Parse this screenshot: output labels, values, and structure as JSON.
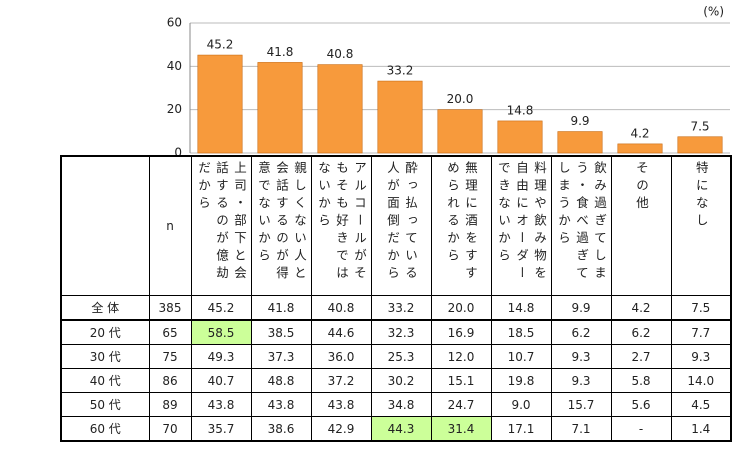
{
  "chart_data": {
    "type": "bar",
    "unit": "(%)",
    "categories": [
      "上司・部下と会話するのが億劫だから",
      "親しくない人と会話するのが得意でないから",
      "アルコールがそもそも好きではないから",
      "酔っ払っている人が面倒だから",
      "無理に酒をすすめられるから",
      "料理や飲み物を自由にオーダーできないから",
      "飲み過ぎてしまう・食べ過ぎてしまうから",
      "その他",
      "特になし"
    ],
    "values": [
      45.2,
      41.8,
      40.8,
      33.2,
      20.0,
      14.8,
      9.9,
      4.2,
      7.5
    ],
    "value_labels": [
      "45.2",
      "41.8",
      "40.8",
      "33.2",
      "20.0",
      "14.8",
      "9.9",
      "4.2",
      "7.5"
    ],
    "color": "#f79a3c",
    "ylim": [
      0,
      60
    ],
    "yticks": [
      0,
      20,
      40,
      60
    ],
    "grid": true
  },
  "table": {
    "n_header": "n",
    "highlight_color": "#ccff99",
    "rows": [
      {
        "label": "全 体",
        "n": 385,
        "cells": [
          "45.2",
          "41.8",
          "40.8",
          "33.2",
          "20.0",
          "14.8",
          "9.9",
          "4.2",
          "7.5"
        ],
        "highlight": []
      },
      {
        "label": "20 代",
        "n": 65,
        "cells": [
          "58.5",
          "38.5",
          "44.6",
          "32.3",
          "16.9",
          "18.5",
          "6.2",
          "6.2",
          "7.7"
        ],
        "highlight": [
          0
        ]
      },
      {
        "label": "30 代",
        "n": 75,
        "cells": [
          "49.3",
          "37.3",
          "36.0",
          "25.3",
          "12.0",
          "10.7",
          "9.3",
          "2.7",
          "9.3"
        ],
        "highlight": []
      },
      {
        "label": "40 代",
        "n": 86,
        "cells": [
          "40.7",
          "48.8",
          "37.2",
          "30.2",
          "15.1",
          "19.8",
          "9.3",
          "5.8",
          "14.0"
        ],
        "highlight": []
      },
      {
        "label": "50 代",
        "n": 89,
        "cells": [
          "43.8",
          "43.8",
          "43.8",
          "34.8",
          "24.7",
          "9.0",
          "15.7",
          "5.6",
          "4.5"
        ],
        "highlight": []
      },
      {
        "label": "60 代",
        "n": 70,
        "cells": [
          "35.7",
          "38.6",
          "42.9",
          "44.3",
          "31.4",
          "17.1",
          "7.1",
          "-",
          "1.4"
        ],
        "highlight": [
          3,
          4
        ]
      }
    ]
  }
}
